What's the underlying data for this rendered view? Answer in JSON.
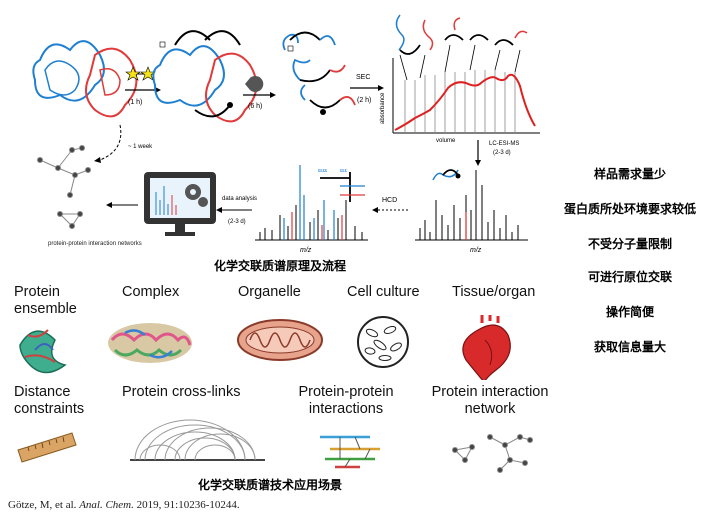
{
  "workflow": {
    "step1_time": "(1 h)",
    "step2_time": "(6 h)",
    "sec_label": "SEC",
    "sec_time": "(2 h)",
    "week_label": "~ 1 week",
    "absorbance_label": "absorbance",
    "volume_label": "volume",
    "lcms_label": "LC-ESI-MS",
    "lcms_time": "(2-3 d)",
    "hcd_label": "HCD",
    "data_analysis_label": "data analysis",
    "data_analysis_time": "(2-3 d)",
    "mz_label": "m/z",
    "mz_label2": "m/z",
    "network_label": "protein-protein interaction networks",
    "caption": "化学交联质谱原理及流程"
  },
  "advantages": [
    "样品需求量少",
    "蛋白质所处环境要求较低",
    "不受分子量限制",
    "可进行原位交联",
    "操作简便",
    "获取信息量大"
  ],
  "applications": {
    "top": [
      "Protein ensemble",
      "Complex",
      "Organelle",
      "Cell culture",
      "Tissue/organ"
    ],
    "bottom": [
      "Distance constraints",
      "Protein cross-links",
      "Protein-protein interactions",
      "Protein interaction network"
    ],
    "caption": "化学交联质谱技术应用场景"
  },
  "citation": {
    "authors": "Götze, M, et al.",
    "journal": "Anal. Chem.",
    "details": "2019, 91:10236-10244."
  },
  "colors": {
    "protein_blue": "#1f7fd0",
    "protein_red": "#e03a3a",
    "chromatogram": "#e02020"
  }
}
